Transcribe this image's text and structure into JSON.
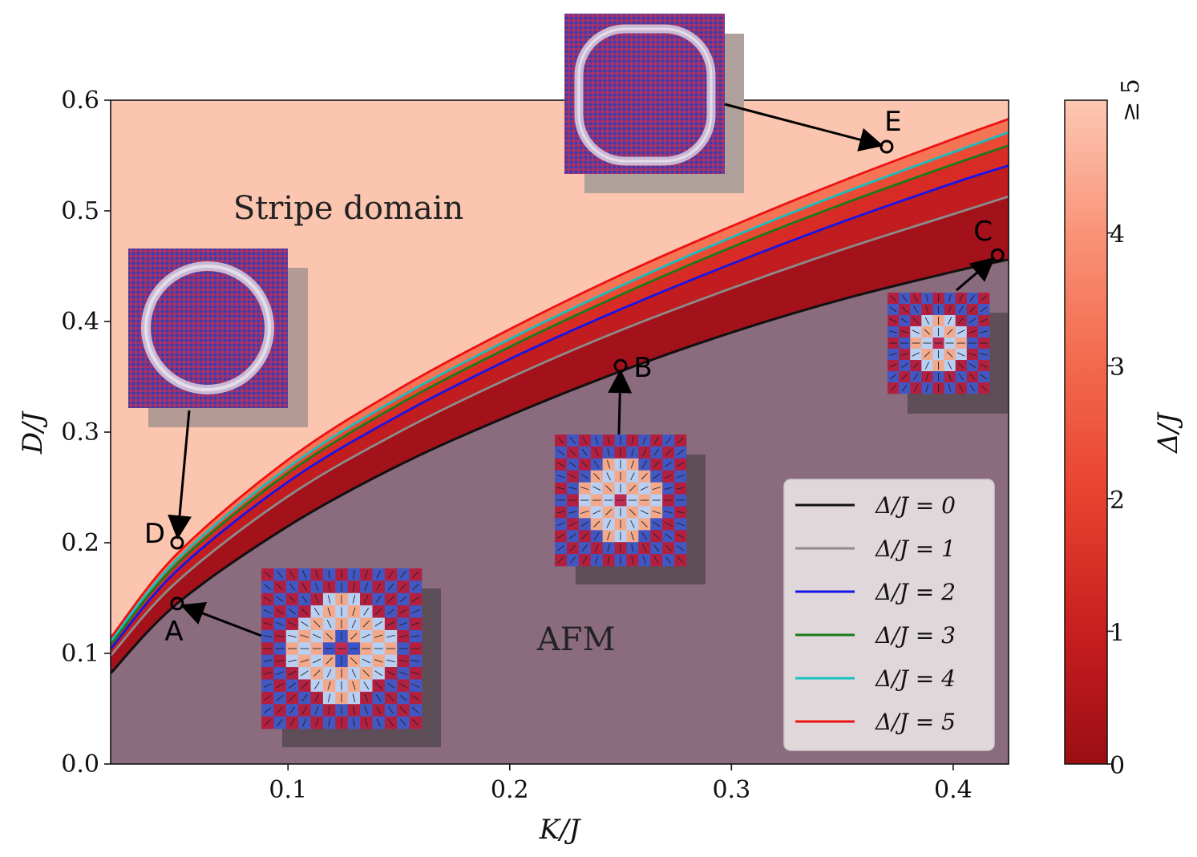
{
  "chart_data": {
    "type": "line",
    "title": "",
    "xlabel": "K/J",
    "ylabel": "D/J",
    "xlim": [
      0.02,
      0.425
    ],
    "ylim": [
      0.0,
      0.6
    ],
    "x_ticks": [
      0.1,
      0.2,
      0.3,
      0.4
    ],
    "x_tick_labels": [
      "0.1",
      "0.2",
      "0.3",
      "0.4"
    ],
    "y_ticks": [
      0.0,
      0.1,
      0.2,
      0.3,
      0.4,
      0.5,
      0.6
    ],
    "y_tick_labels": [
      "0.0",
      "0.1",
      "0.2",
      "0.3",
      "0.4",
      "0.5",
      "0.6"
    ],
    "grid": false,
    "legend_position": "bottom-right",
    "series": [
      {
        "name": "Δ/J = 0",
        "color": "#111111",
        "x": [
          0.02,
          0.05,
          0.1,
          0.15,
          0.2,
          0.25,
          0.3,
          0.35,
          0.4,
          0.425
        ],
        "y": [
          0.082,
          0.145,
          0.215,
          0.27,
          0.315,
          0.355,
          0.39,
          0.42,
          0.445,
          0.456
        ]
      },
      {
        "name": "Δ/J = 1",
        "color": "#8c8c8c",
        "x": [
          0.02,
          0.05,
          0.1,
          0.15,
          0.2,
          0.25,
          0.3,
          0.35,
          0.4,
          0.425
        ],
        "y": [
          0.098,
          0.165,
          0.242,
          0.3,
          0.349,
          0.392,
          0.43,
          0.465,
          0.497,
          0.513
        ]
      },
      {
        "name": "Δ/J = 2",
        "color": "#1515e8",
        "x": [
          0.02,
          0.05,
          0.1,
          0.15,
          0.2,
          0.25,
          0.3,
          0.35,
          0.4,
          0.425
        ],
        "y": [
          0.104,
          0.175,
          0.255,
          0.315,
          0.366,
          0.411,
          0.452,
          0.49,
          0.525,
          0.541
        ]
      },
      {
        "name": "Δ/J = 3",
        "color": "#1a7a1a",
        "x": [
          0.02,
          0.05,
          0.1,
          0.15,
          0.2,
          0.25,
          0.3,
          0.35,
          0.4,
          0.425
        ],
        "y": [
          0.108,
          0.181,
          0.263,
          0.325,
          0.377,
          0.424,
          0.467,
          0.506,
          0.542,
          0.559
        ]
      },
      {
        "name": "Δ/J = 4",
        "color": "#17bfbf",
        "x": [
          0.02,
          0.05,
          0.1,
          0.15,
          0.2,
          0.25,
          0.3,
          0.35,
          0.4,
          0.425
        ],
        "y": [
          0.111,
          0.185,
          0.268,
          0.331,
          0.384,
          0.432,
          0.476,
          0.516,
          0.553,
          0.571
        ]
      },
      {
        "name": "Δ/J = 5",
        "color": "#ee1111",
        "x": [
          0.02,
          0.05,
          0.1,
          0.15,
          0.2,
          0.25,
          0.3,
          0.35,
          0.4,
          0.425
        ],
        "y": [
          0.114,
          0.19,
          0.275,
          0.339,
          0.393,
          0.442,
          0.486,
          0.527,
          0.565,
          0.583
        ]
      }
    ],
    "colorbar": {
      "label": "Δ/J",
      "min": 0,
      "max": 5,
      "ticks": [
        0,
        1,
        2,
        3,
        4
      ],
      "tick_labels": [
        "0",
        "1",
        "2",
        "3",
        "4"
      ],
      "top_label": "≥ 5",
      "colors": [
        "#9a0e14",
        "#c81e1f",
        "#e8412f",
        "#f2694d",
        "#f99378",
        "#fcc8b3"
      ]
    },
    "regions": [
      {
        "name": "Stripe domain",
        "color": "#fcc5b0",
        "at": [
          0.12,
          0.5
        ]
      },
      {
        "name": "AFM",
        "color": "#8b6b7e",
        "at": [
          0.23,
          0.11
        ]
      }
    ],
    "points": [
      {
        "label": "A",
        "x": 0.05,
        "y": 0.145
      },
      {
        "label": "B",
        "x": 0.25,
        "y": 0.36
      },
      {
        "label": "C",
        "x": 0.42,
        "y": 0.46
      },
      {
        "label": "D",
        "x": 0.05,
        "y": 0.2
      },
      {
        "label": "E",
        "x": 0.37,
        "y": 0.558
      }
    ]
  },
  "legend": {
    "entries": [
      "Δ/J = 0",
      "Δ/J = 1",
      "Δ/J = 2",
      "Δ/J = 3",
      "Δ/J = 4",
      "Δ/J = 5"
    ]
  }
}
